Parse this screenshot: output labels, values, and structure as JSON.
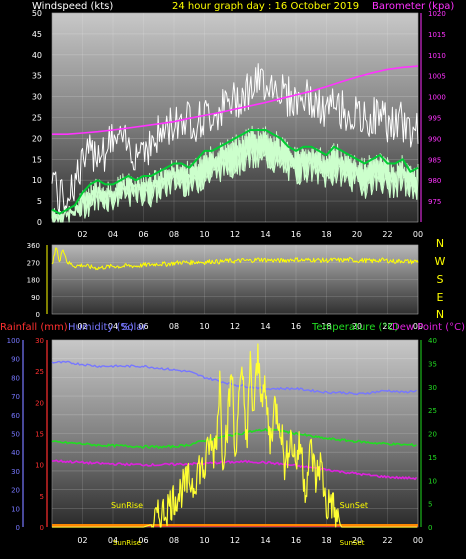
{
  "title": "24 hour graph day : 16 October 2019",
  "colors": {
    "background": "#000000",
    "wind_avg": "#00cc33",
    "wind_gust": "#ffffff",
    "wind_range": "#ccffcc",
    "barometer": "#ff33ff",
    "direction": "#ffff00",
    "rainfall": "#ff3030",
    "humidity": "#7777ff",
    "solar": "#ffff33",
    "temperature": "#22dd22",
    "dewpoint": "#dd22dd",
    "sun_line": "#ff8800"
  },
  "chart_data": [
    {
      "type": "line",
      "name": "wind-barometer",
      "labels": {
        "left": "Windspeed (kts)",
        "right": "Barometer (kpa)"
      },
      "x_ticks": [
        "02",
        "04",
        "06",
        "08",
        "10",
        "12",
        "14",
        "16",
        "18",
        "20",
        "22",
        "00"
      ],
      "y_left": {
        "range": [
          0,
          50
        ],
        "ticks": [
          0,
          5,
          10,
          15,
          20,
          25,
          30,
          35,
          40,
          45,
          50
        ]
      },
      "y_right": {
        "range": [
          970,
          1020
        ],
        "ticks": [
          975,
          980,
          985,
          990,
          995,
          1000,
          1005,
          1010,
          1015,
          1020
        ]
      },
      "grid": true,
      "series": [
        {
          "key": "gust",
          "axis": "left",
          "x": [
            0,
            0.5,
            1,
            1.5,
            2,
            2.5,
            3,
            3.5,
            4,
            4.5,
            5,
            5.5,
            6,
            6.5,
            7,
            7.5,
            8,
            8.5,
            9,
            9.5,
            10,
            10.5,
            11,
            11.5,
            12,
            12.5,
            13,
            13.5,
            14,
            14.5,
            15,
            15.5,
            16,
            16.5,
            17,
            17.5,
            18,
            18.5,
            19,
            19.5,
            20,
            20.5,
            21,
            21.5,
            22,
            22.5,
            23,
            23.5,
            24
          ],
          "values": [
            11,
            3,
            5,
            8,
            12,
            14,
            16,
            15,
            18,
            17,
            16,
            15,
            17,
            16,
            19,
            20,
            22,
            23,
            23,
            22,
            23,
            24,
            25,
            26,
            27,
            29,
            30,
            31,
            32,
            31,
            30,
            28,
            27,
            28,
            27,
            25,
            24,
            26,
            25,
            24,
            23,
            22,
            23,
            24,
            22,
            21,
            22,
            20,
            21
          ]
        },
        {
          "key": "average",
          "axis": "left",
          "x": [
            0,
            0.5,
            1,
            1.5,
            2,
            2.5,
            3,
            3.5,
            4,
            4.5,
            5,
            5.5,
            6,
            6.5,
            7,
            7.5,
            8,
            8.5,
            9,
            9.5,
            10,
            10.5,
            11,
            11.5,
            12,
            12.5,
            13,
            13.5,
            14,
            14.5,
            15,
            15.5,
            16,
            16.5,
            17,
            17.5,
            18,
            18.5,
            19,
            19.5,
            20,
            20.5,
            21,
            21.5,
            22,
            22.5,
            23,
            23.5,
            24
          ],
          "values": [
            3,
            2,
            3,
            4,
            7,
            9,
            10,
            9,
            9,
            10,
            11,
            10,
            11,
            11,
            12,
            13,
            14,
            14,
            13,
            15,
            17,
            17,
            18,
            19,
            20,
            21,
            22,
            22,
            22,
            21,
            20,
            18,
            17,
            18,
            18,
            17,
            16,
            18,
            17,
            16,
            15,
            14,
            15,
            16,
            14,
            14,
            15,
            12,
            13
          ]
        },
        {
          "key": "lull",
          "axis": "left",
          "x": [
            0,
            0.5,
            1,
            1.5,
            2,
            2.5,
            3,
            3.5,
            4,
            4.5,
            5,
            5.5,
            6,
            6.5,
            7,
            7.5,
            8,
            8.5,
            9,
            9.5,
            10,
            10.5,
            11,
            11.5,
            12,
            12.5,
            13,
            13.5,
            14,
            14.5,
            15,
            15.5,
            16,
            16.5,
            17,
            17.5,
            18,
            18.5,
            19,
            19.5,
            20,
            20.5,
            21,
            21.5,
            22,
            22.5,
            23,
            23.5,
            24
          ],
          "values": [
            1,
            1,
            1,
            2,
            3,
            4,
            5,
            5,
            5,
            6,
            6,
            6,
            6,
            6,
            7,
            8,
            9,
            9,
            8,
            9,
            10,
            11,
            12,
            13,
            13,
            14,
            15,
            14,
            15,
            14,
            13,
            12,
            11,
            12,
            12,
            11,
            10,
            11,
            11,
            10,
            9,
            8,
            9,
            10,
            8,
            8,
            9,
            7,
            8
          ]
        },
        {
          "key": "barometer",
          "axis": "right",
          "x": [
            0,
            1,
            2,
            3,
            4,
            5,
            6,
            7,
            8,
            9,
            10,
            11,
            12,
            13,
            14,
            15,
            16,
            17,
            18,
            19,
            20,
            21,
            22,
            23,
            24
          ],
          "values": [
            991,
            991,
            991.3,
            991.6,
            992,
            992.5,
            993,
            993.5,
            994,
            994.8,
            995.5,
            996.2,
            997,
            997.8,
            998.6,
            999.5,
            1000.4,
            1001.3,
            1002.4,
            1003.6,
            1004.7,
            1005.7,
            1006.5,
            1007,
            1007.3
          ]
        }
      ]
    },
    {
      "type": "scatter",
      "name": "wind-direction",
      "x_ticks": [
        "02",
        "04",
        "06",
        "08",
        "10",
        "12",
        "14",
        "16",
        "18",
        "20",
        "22",
        "00"
      ],
      "y": {
        "range": [
          0,
          360
        ],
        "ticks": [
          0,
          90,
          180,
          270,
          360
        ]
      },
      "right_labels": [
        "N",
        "W",
        "S",
        "E",
        "N"
      ],
      "grid": true,
      "series": [
        {
          "key": "direction",
          "x": [
            0,
            0.3,
            0.5,
            0.7,
            1,
            1.5,
            2,
            2.5,
            3,
            3.5,
            4,
            4.5,
            5,
            5.5,
            6,
            6.5,
            7,
            7.5,
            8,
            8.5,
            9,
            9.5,
            10,
            10.5,
            11,
            11.5,
            12,
            12.5,
            13,
            13.5,
            14,
            14.5,
            15,
            15.5,
            16,
            16.5,
            17,
            17.5,
            18,
            18.5,
            19,
            19.5,
            20,
            20.5,
            21,
            21.5,
            22,
            22.5,
            23,
            23.5,
            24
          ],
          "values": [
            250,
            355,
            260,
            350,
            270,
            250,
            255,
            245,
            240,
            245,
            250,
            248,
            252,
            250,
            255,
            258,
            262,
            260,
            265,
            270,
            268,
            272,
            270,
            275,
            272,
            278,
            275,
            280,
            278,
            285,
            282,
            280,
            278,
            282,
            285,
            280,
            283,
            281,
            279,
            282,
            280,
            284,
            278,
            280,
            276,
            282,
            279,
            274,
            278,
            272,
            276
          ]
        }
      ]
    },
    {
      "type": "line",
      "name": "atmosphere",
      "labels": {
        "rainfall": "Rainfall (mm)",
        "humidity": "Humidity (%)",
        "solar": "Solar",
        "temperature": "Temperature (°C)",
        "dewpoint": "Dew Point (°C)"
      },
      "x_ticks": [
        "02",
        "04",
        "06",
        "08",
        "10",
        "12",
        "14",
        "16",
        "18",
        "20",
        "22",
        "00"
      ],
      "y_humidity": {
        "range": [
          0,
          100
        ],
        "ticks": [
          0,
          10,
          20,
          30,
          40,
          50,
          60,
          70,
          80,
          90,
          100
        ]
      },
      "y_rain": {
        "range": [
          0,
          30
        ],
        "ticks": [
          0,
          5,
          10,
          15,
          20,
          25,
          30
        ]
      },
      "y_right": {
        "range": [
          0,
          40
        ],
        "ticks": [
          0,
          5,
          10,
          15,
          20,
          25,
          30,
          35,
          40
        ]
      },
      "annotations": [
        {
          "text": "SunRise",
          "x": 6.1
        },
        {
          "text": "SunSet",
          "x": 18.6
        }
      ],
      "grid": true,
      "series": [
        {
          "key": "humidity",
          "axis": "humidity",
          "x": [
            0,
            1,
            2,
            3,
            4,
            5,
            6,
            7,
            8,
            9,
            10,
            11,
            12,
            13,
            14,
            15,
            16,
            17,
            18,
            19,
            20,
            21,
            22,
            23,
            24
          ],
          "values": [
            88,
            88,
            87,
            86,
            86,
            86,
            86,
            85,
            84,
            83,
            80,
            78,
            76,
            75,
            74,
            74,
            74,
            73,
            72,
            72,
            71,
            72,
            73,
            72,
            73
          ]
        },
        {
          "key": "temperature",
          "axis": "right",
          "x": [
            0,
            1,
            2,
            3,
            4,
            5,
            6,
            7,
            8,
            9,
            10,
            11,
            12,
            13,
            14,
            15,
            16,
            17,
            18,
            19,
            20,
            21,
            22,
            23,
            24
          ],
          "values": [
            18.2,
            18,
            17.8,
            17.5,
            17.4,
            17.3,
            17.2,
            17.1,
            17.2,
            17.6,
            18.5,
            19.2,
            19.8,
            20.4,
            20.8,
            20.6,
            20,
            19.4,
            18.9,
            18.6,
            18.3,
            18,
            17.8,
            17.6,
            17.5
          ]
        },
        {
          "key": "dewpoint",
          "axis": "right",
          "x": [
            0,
            1,
            2,
            3,
            4,
            5,
            6,
            7,
            8,
            9,
            10,
            11,
            12,
            13,
            14,
            15,
            16,
            17,
            18,
            19,
            20,
            21,
            22,
            23,
            24
          ],
          "values": [
            14.2,
            14,
            13.8,
            13.6,
            13.5,
            13.4,
            13.3,
            13.3,
            13.4,
            13.5,
            13.6,
            13.8,
            13.9,
            14,
            13.8,
            13.5,
            13.1,
            12.7,
            12.3,
            11.8,
            11.4,
            11,
            10.7,
            10.5,
            10.4
          ]
        },
        {
          "key": "rainfall",
          "axis": "rain",
          "x": [
            0,
            24
          ],
          "values": [
            0.2,
            0.2
          ]
        },
        {
          "key": "solar",
          "axis": "right",
          "x": [
            0,
            6,
            6.5,
            7,
            7.5,
            8,
            8.5,
            9,
            9.3,
            9.6,
            10,
            10.3,
            10.6,
            10.8,
            11,
            11.2,
            11.5,
            11.8,
            12,
            12.2,
            12.5,
            12.8,
            13,
            13.2,
            13.5,
            13.7,
            14,
            14.3,
            14.6,
            15,
            15.3,
            15.6,
            16,
            16.3,
            16.6,
            17,
            17.3,
            17.6,
            18,
            18.3,
            18.6,
            19,
            24
          ],
          "values": [
            0,
            0,
            0.5,
            2,
            4,
            6,
            8,
            10,
            9,
            13,
            12,
            18,
            16,
            20,
            32,
            15,
            22,
            34,
            14,
            26,
            32,
            18,
            35,
            24,
            36,
            30,
            28,
            18,
            26,
            22,
            12,
            20,
            14,
            18,
            8,
            17,
            10,
            14,
            4,
            6,
            2,
            0,
            0
          ]
        }
      ]
    }
  ]
}
